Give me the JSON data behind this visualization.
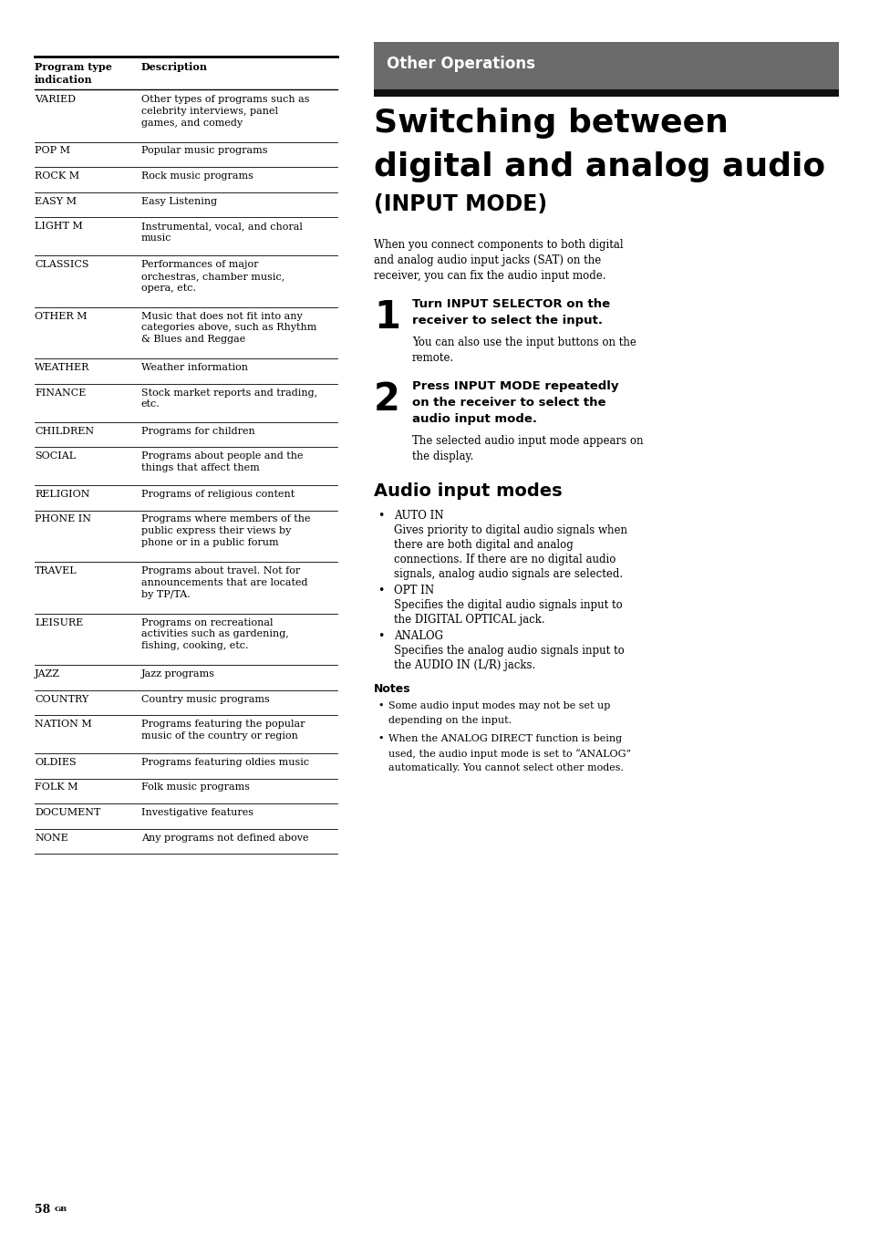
{
  "bg_color": "#ffffff",
  "table_rows": [
    [
      "VARIED",
      "Other types of programs such as\ncelebrity interviews, panel\ngames, and comedy"
    ],
    [
      "POP M",
      "Popular music programs"
    ],
    [
      "ROCK M",
      "Rock music programs"
    ],
    [
      "EASY M",
      "Easy Listening"
    ],
    [
      "LIGHT M",
      "Instrumental, vocal, and choral\nmusic"
    ],
    [
      "CLASSICS",
      "Performances of major\norchestras, chamber music,\nopera, etc."
    ],
    [
      "OTHER M",
      "Music that does not fit into any\ncategories above, such as Rhythm\n& Blues and Reggae"
    ],
    [
      "WEATHER",
      "Weather information"
    ],
    [
      "FINANCE",
      "Stock market reports and trading,\netc."
    ],
    [
      "CHILDREN",
      "Programs for children"
    ],
    [
      "SOCIAL",
      "Programs about people and the\nthings that affect them"
    ],
    [
      "RELIGION",
      "Programs of religious content"
    ],
    [
      "PHONE IN",
      "Programs where members of the\npublic express their views by\nphone or in a public forum"
    ],
    [
      "TRAVEL",
      "Programs about travel. Not for\nannouncements that are located\nby TP/TA."
    ],
    [
      "LEISURE",
      "Programs on recreational\nactivities such as gardening,\nfishing, cooking, etc."
    ],
    [
      "JAZZ",
      "Jazz programs"
    ],
    [
      "COUNTRY",
      "Country music programs"
    ],
    [
      "NATION M",
      "Programs featuring the popular\nmusic of the country or region"
    ],
    [
      "OLDIES",
      "Programs featuring oldies music"
    ],
    [
      "FOLK M",
      "Folk music programs"
    ],
    [
      "DOCUMENT",
      "Investigative features"
    ],
    [
      "NONE",
      "Any programs not defined above"
    ]
  ],
  "banner_text": "Other Operations",
  "title_line1": "Switching between",
  "title_line2": "digital and analog audio",
  "title_line3": "(INPUT MODE)",
  "intro_text": "When you connect components to both digital\nand analog audio input jacks (SAT) on the\nreceiver, you can fix the audio input mode.",
  "step1_num": "1",
  "step1_bold": "Turn INPUT SELECTOR on the\nreceiver to select the input.",
  "step1_body": "You can also use the input buttons on the\nremote.",
  "step2_num": "2",
  "step2_bold": "Press INPUT MODE repeatedly\non the receiver to select the\naudio input mode.",
  "step2_body": "The selected audio input mode appears on\nthe display.",
  "audio_modes_title": "Audio input modes",
  "audio_modes": [
    [
      "AUTO IN",
      "Gives priority to digital audio signals when\nthere are both digital and analog\nconnections. If there are no digital audio\nsignals, analog audio signals are selected."
    ],
    [
      "OPT IN",
      "Specifies the digital audio signals input to\nthe DIGITAL OPTICAL jack."
    ],
    [
      "ANALOG",
      "Specifies the analog audio signals input to\nthe AUDIO IN (L/R) jacks."
    ]
  ],
  "notes_title": "Notes",
  "notes": [
    "Some audio input modes may not be set up\ndepending on the input.",
    "When the ANALOG DIRECT function is being\nused, the audio input mode is set to “ANALOG”\nautomatically. You cannot select other modes."
  ],
  "footer_text": "58",
  "footer_super": "GB"
}
